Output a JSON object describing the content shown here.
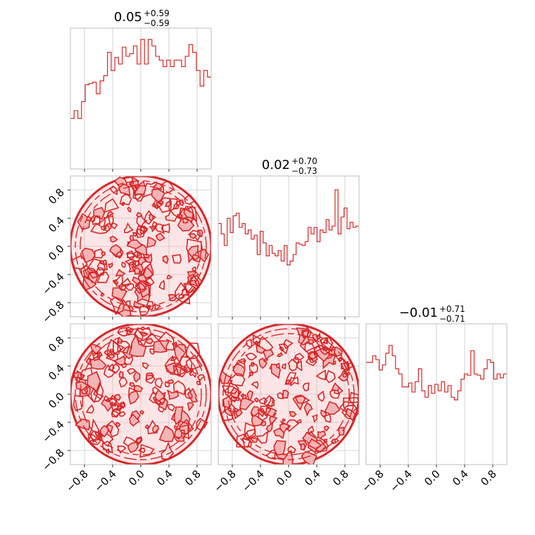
{
  "chart_data": {
    "type": "corner",
    "color": "#d62728",
    "fill_color": "#f3b4b6",
    "axis_range": [
      -1,
      1
    ],
    "tick_values": [
      -0.8,
      -0.4,
      0.0,
      0.4,
      0.8
    ],
    "tick_labels": [
      "−0.8",
      "−0.4",
      "0.0",
      "0.4",
      "0.8"
    ],
    "grid": true,
    "parameters": [
      {
        "title_value": "0.05",
        "title_plus": "+0.59",
        "title_minus": "−0.59",
        "histogram": [
          0.39,
          0.45,
          0.39,
          0.52,
          0.65,
          0.66,
          0.67,
          0.58,
          0.68,
          0.72,
          0.9,
          0.76,
          0.86,
          0.81,
          0.94,
          0.87,
          0.89,
          0.95,
          0.81,
          1.0,
          0.81,
          1.0,
          0.95,
          0.87,
          0.84,
          0.79,
          0.84,
          0.79,
          0.84,
          0.84,
          0.79,
          0.87,
          0.96,
          0.9,
          0.76,
          0.64,
          0.76,
          0.71
        ]
      },
      {
        "title_value": "0.02",
        "title_plus": "+0.70",
        "title_minus": "−0.73",
        "histogram": [
          0.72,
          0.64,
          0.55,
          0.76,
          0.65,
          0.78,
          0.8,
          0.69,
          0.72,
          0.64,
          0.67,
          0.6,
          0.63,
          0.48,
          0.66,
          0.57,
          0.47,
          0.55,
          0.49,
          0.47,
          0.51,
          0.43,
          0.55,
          0.4,
          0.43,
          0.48,
          0.57,
          0.56,
          0.55,
          0.58,
          0.69,
          0.64,
          0.69,
          0.58,
          0.67,
          0.65,
          0.75,
          0.67,
          0.7,
          0.98,
          0.64,
          0.77,
          0.84,
          0.68,
          0.73,
          0.69,
          0.7
        ]
      },
      {
        "title_value": "−0.01",
        "title_plus": "+0.71",
        "title_minus": "−0.71",
        "histogram": [
          0.79,
          0.79,
          0.84,
          0.81,
          0.73,
          0.77,
          0.86,
          0.92,
          0.84,
          0.74,
          0.7,
          0.6,
          0.6,
          0.63,
          0.56,
          0.64,
          0.74,
          0.57,
          0.52,
          0.61,
          0.55,
          0.62,
          0.57,
          0.64,
          0.56,
          0.61,
          0.52,
          0.5,
          0.57,
          0.66,
          0.7,
          0.69,
          0.88,
          0.7,
          0.69,
          0.66,
          0.74,
          0.81,
          0.79,
          0.66,
          0.7,
          0.67,
          0.7
        ]
      }
    ],
    "contours": [
      {
        "panel": "1-0",
        "shape": "disk",
        "center": [
          0,
          0
        ],
        "radius": 1.0,
        "texture": "noisy"
      },
      {
        "panel": "2-0",
        "shape": "disk",
        "center": [
          0,
          0
        ],
        "radius": 1.0,
        "texture": "noisy"
      },
      {
        "panel": "2-1",
        "shape": "disk",
        "center": [
          0,
          0
        ],
        "radius": 1.0,
        "texture": "noisy"
      }
    ]
  }
}
